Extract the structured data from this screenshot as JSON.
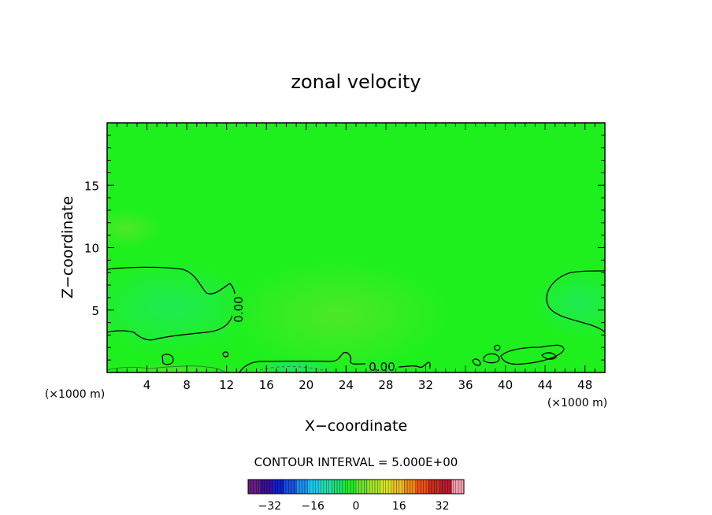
{
  "chart_data": {
    "type": "heatmap",
    "title": "zonal velocity",
    "xlabel": "X−coordinate",
    "ylabel": "Z−coordinate",
    "x_unit": "(×1000 m)",
    "xlim": [
      0,
      50
    ],
    "ylim": [
      0,
      20
    ],
    "x_ticks": [
      4,
      8,
      12,
      16,
      20,
      24,
      28,
      32,
      36,
      40,
      44,
      48
    ],
    "y_ticks": [
      5,
      10,
      15
    ],
    "contour_interval_text": "CONTOUR INTERVAL = 5.000E+00",
    "contour_labels": [
      "0.00",
      "0.00"
    ],
    "colorbar": {
      "range": [
        -40,
        40
      ],
      "ticks": [
        -32,
        -16,
        0,
        16,
        32
      ],
      "tick_labels": [
        "−32",
        "−16",
        "0",
        "16",
        "32"
      ],
      "colors": [
        "#6a1a8a",
        "#3a0f9a",
        "#1020c0",
        "#1450e6",
        "#1a90f0",
        "#20c8e8",
        "#20e0b0",
        "#1ee070",
        "#28e830",
        "#6ae628",
        "#a6e628",
        "#d8e428",
        "#f0c020",
        "#f08a18",
        "#e85018",
        "#d02a1a",
        "#b81c30",
        "#f0a0b0"
      ]
    },
    "background_value_color": "#1ef01e",
    "regions": [
      {
        "description_value": "negative-weak",
        "color": "#1ee680"
      },
      {
        "description_value": "positive-weak",
        "color": "#8ae628"
      }
    ]
  }
}
